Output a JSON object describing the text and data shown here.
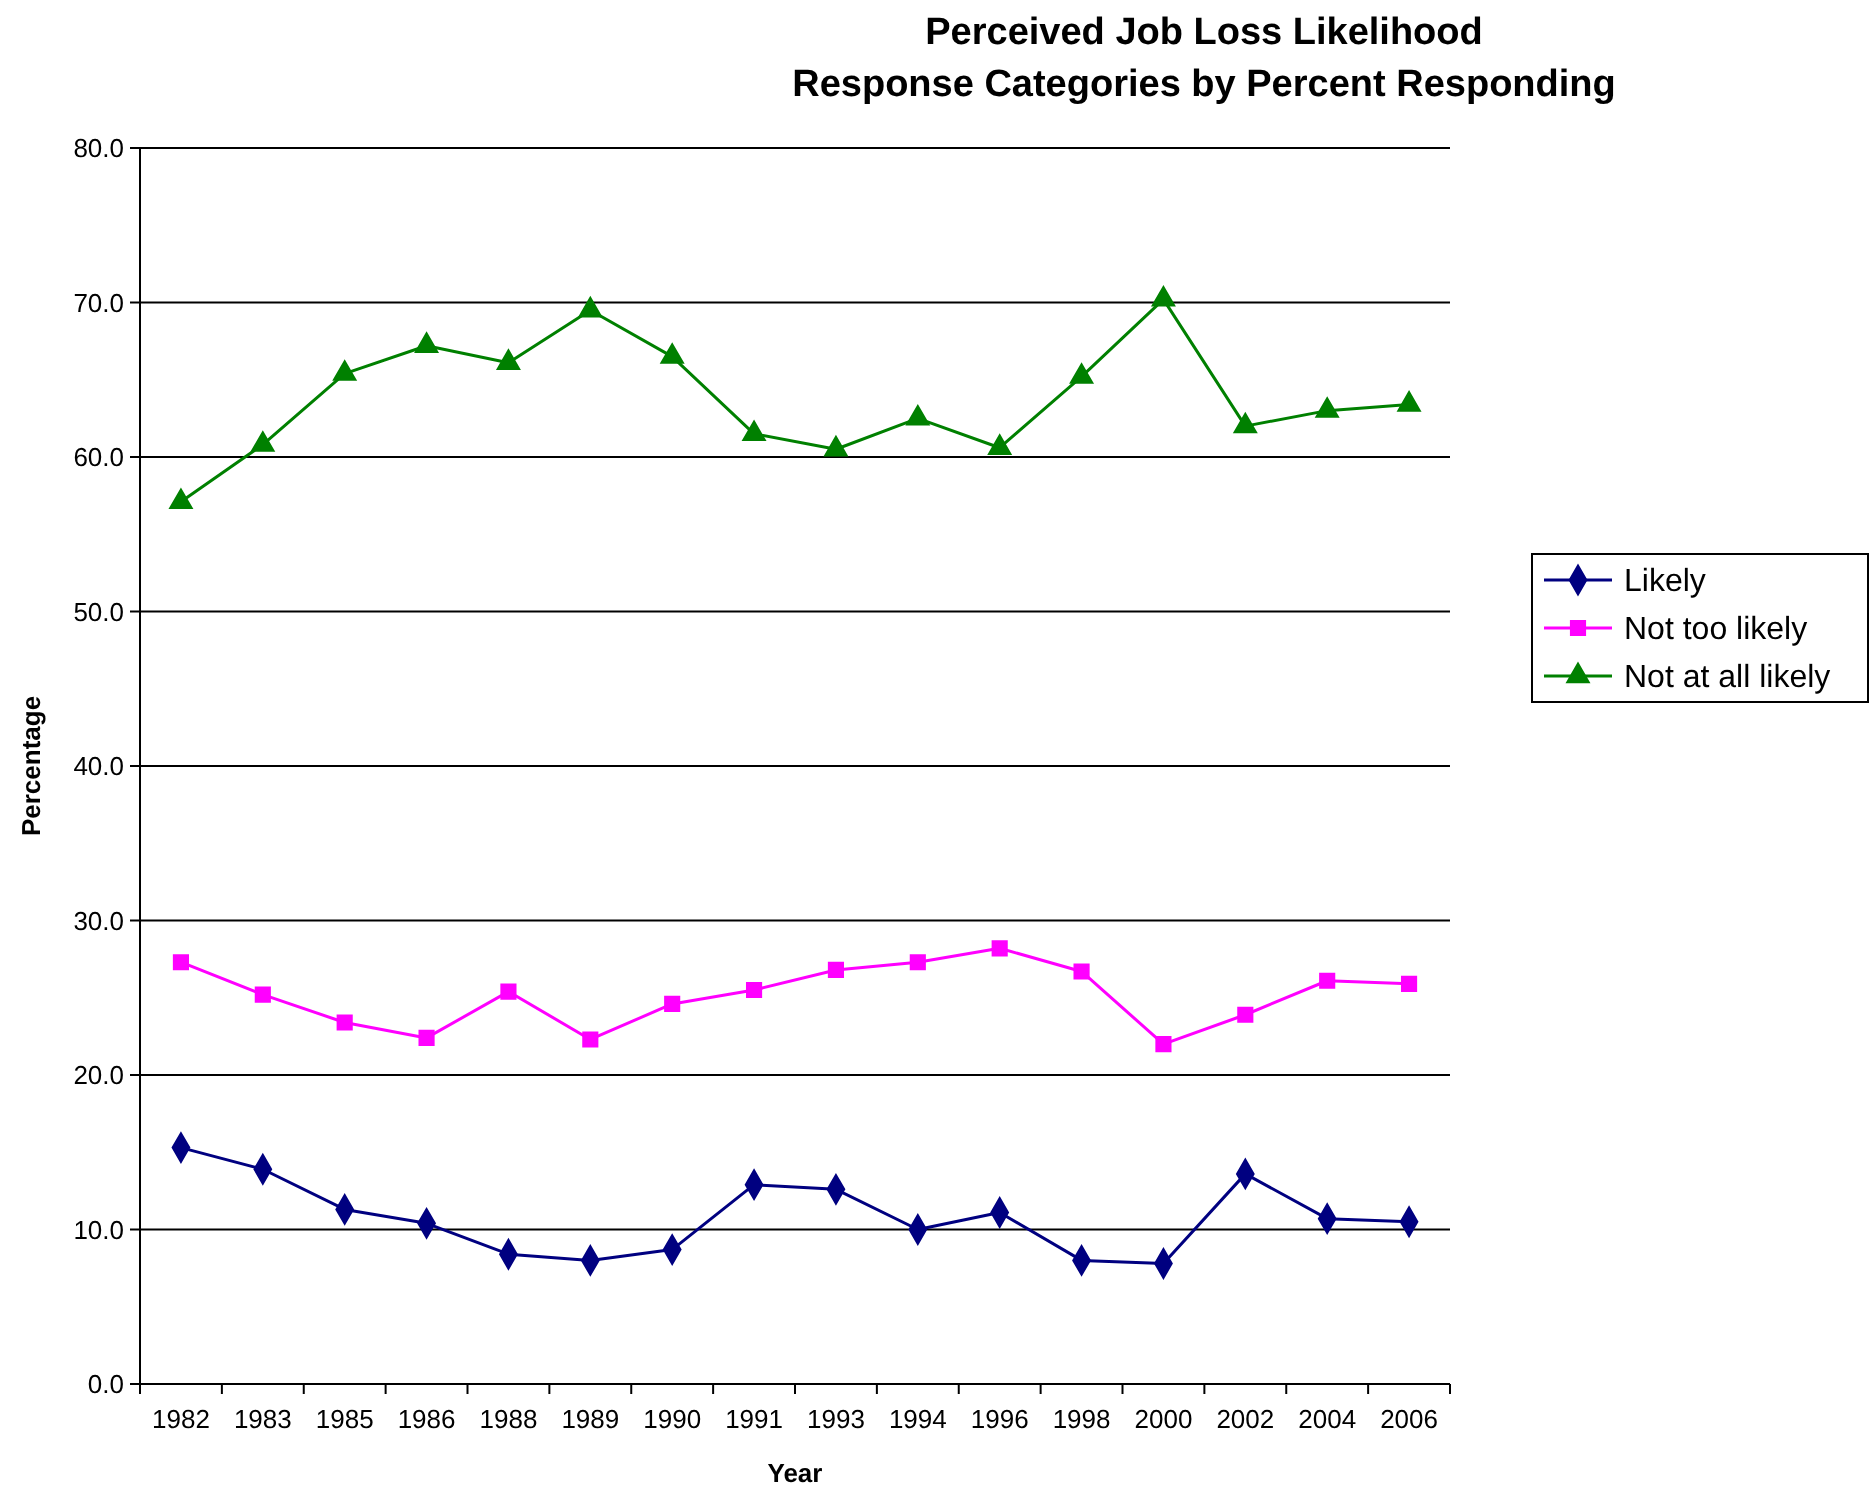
{
  "chart_data": {
    "type": "line",
    "title": "Perceived Job Loss Likelihood\nResponse Categories by Percent Responding",
    "xlabel": "Year",
    "ylabel": "Percentage",
    "categories": [
      "1982",
      "1983",
      "1985",
      "1986",
      "1988",
      "1989",
      "1990",
      "1991",
      "1993",
      "1994",
      "1996",
      "1998",
      "2000",
      "2002",
      "2004",
      "2006"
    ],
    "series": [
      {
        "name": "Likely",
        "color": "#000080",
        "marker": "diamond",
        "values": [
          15.3,
          13.9,
          11.3,
          10.4,
          8.4,
          8.0,
          8.7,
          12.9,
          12.6,
          10.0,
          11.1,
          8.0,
          7.8,
          13.6,
          10.7,
          10.5
        ]
      },
      {
        "name": "Not too likely",
        "color": "#ff00ff",
        "marker": "square",
        "values": [
          27.3,
          25.2,
          23.4,
          22.4,
          25.4,
          22.3,
          24.6,
          25.5,
          26.8,
          27.3,
          28.2,
          26.7,
          22.0,
          23.9,
          26.1,
          25.9
        ]
      },
      {
        "name": "Not at all likely",
        "color": "#008000",
        "marker": "triangle",
        "values": [
          57.1,
          60.8,
          65.4,
          67.2,
          66.1,
          69.5,
          66.5,
          61.5,
          60.5,
          62.5,
          60.6,
          65.2,
          70.2,
          62.0,
          63.0,
          63.4
        ]
      }
    ],
    "ylim": [
      0,
      80
    ],
    "yticks": [
      {
        "value": 0,
        "label": "0.0"
      },
      {
        "value": 10,
        "label": "10.0"
      },
      {
        "value": 20,
        "label": "20.0"
      },
      {
        "value": 30,
        "label": "30.0"
      },
      {
        "value": 40,
        "label": "40.0"
      },
      {
        "value": 50,
        "label": "50.0"
      },
      {
        "value": 60,
        "label": "60.0"
      },
      {
        "value": 70,
        "label": "70.0"
      },
      {
        "value": 80,
        "label": "80.0"
      }
    ],
    "grid": "y",
    "legend": "right",
    "line_style": "solid"
  }
}
